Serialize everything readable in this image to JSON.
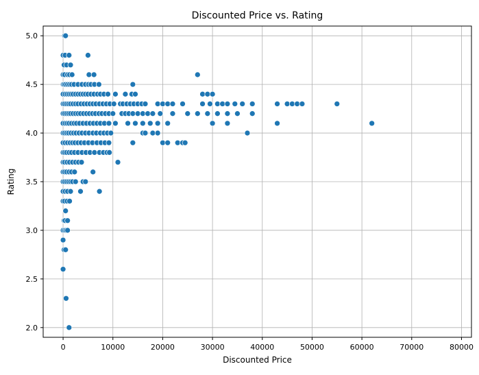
{
  "chart_data": {
    "type": "scatter",
    "title": "Discounted Price vs. Rating",
    "xlabel": "Discounted Price",
    "ylabel": "Rating",
    "xlim": [
      -4000,
      82000
    ],
    "ylim": [
      1.9,
      5.1
    ],
    "xticks": [
      0,
      10000,
      20000,
      30000,
      40000,
      50000,
      60000,
      70000,
      80000
    ],
    "yticks": [
      2.0,
      2.5,
      3.0,
      3.5,
      4.0,
      4.5,
      5.0
    ],
    "xtick_labels": [
      "0",
      "10000",
      "20000",
      "30000",
      "40000",
      "50000",
      "60000",
      "70000",
      "80000"
    ],
    "ytick_labels": [
      "2.0",
      "2.5",
      "3.0",
      "3.5",
      "4.0",
      "4.5",
      "5.0"
    ],
    "grid": true,
    "marker_color": "#1f77b4",
    "points": [
      [
        300,
        5.0
      ],
      [
        500,
        5.0
      ],
      [
        0,
        4.8
      ],
      [
        400,
        4.8
      ],
      [
        1200,
        4.8
      ],
      [
        5000,
        4.8
      ],
      [
        200,
        4.7
      ],
      [
        700,
        4.7
      ],
      [
        1500,
        4.7
      ],
      [
        0,
        4.6
      ],
      [
        300,
        4.6
      ],
      [
        900,
        4.6
      ],
      [
        1300,
        4.6
      ],
      [
        1800,
        4.6
      ],
      [
        5200,
        4.6
      ],
      [
        6200,
        4.6
      ],
      [
        27000,
        4.6
      ],
      [
        0,
        4.5
      ],
      [
        200,
        4.5
      ],
      [
        500,
        4.5
      ],
      [
        900,
        4.5
      ],
      [
        1300,
        4.5
      ],
      [
        1700,
        4.5
      ],
      [
        2200,
        4.5
      ],
      [
        3000,
        4.5
      ],
      [
        3800,
        4.5
      ],
      [
        4500,
        4.5
      ],
      [
        5100,
        4.5
      ],
      [
        5600,
        4.5
      ],
      [
        6300,
        4.5
      ],
      [
        7200,
        4.5
      ],
      [
        14000,
        4.5
      ],
      [
        0,
        4.4
      ],
      [
        400,
        4.4
      ],
      [
        800,
        4.4
      ],
      [
        1200,
        4.4
      ],
      [
        1600,
        4.4
      ],
      [
        2000,
        4.4
      ],
      [
        2500,
        4.4
      ],
      [
        3000,
        4.4
      ],
      [
        3500,
        4.4
      ],
      [
        4000,
        4.4
      ],
      [
        4500,
        4.4
      ],
      [
        5000,
        4.4
      ],
      [
        5600,
        4.4
      ],
      [
        6200,
        4.4
      ],
      [
        6900,
        4.4
      ],
      [
        7500,
        4.4
      ],
      [
        8200,
        4.4
      ],
      [
        9000,
        4.4
      ],
      [
        10500,
        4.4
      ],
      [
        12500,
        4.4
      ],
      [
        13800,
        4.4
      ],
      [
        14500,
        4.4
      ],
      [
        28000,
        4.4
      ],
      [
        29000,
        4.4
      ],
      [
        30000,
        4.4
      ],
      [
        0,
        4.3
      ],
      [
        300,
        4.3
      ],
      [
        700,
        4.3
      ],
      [
        1100,
        4.3
      ],
      [
        1500,
        4.3
      ],
      [
        2000,
        4.3
      ],
      [
        2500,
        4.3
      ],
      [
        3000,
        4.3
      ],
      [
        3600,
        4.3
      ],
      [
        4200,
        4.3
      ],
      [
        4800,
        4.3
      ],
      [
        5400,
        4.3
      ],
      [
        6000,
        4.3
      ],
      [
        6600,
        4.3
      ],
      [
        7300,
        4.3
      ],
      [
        8000,
        4.3
      ],
      [
        8700,
        4.3
      ],
      [
        9400,
        4.3
      ],
      [
        10200,
        4.3
      ],
      [
        11500,
        4.3
      ],
      [
        12000,
        4.3
      ],
      [
        12800,
        4.3
      ],
      [
        13500,
        4.3
      ],
      [
        14200,
        4.3
      ],
      [
        15000,
        4.3
      ],
      [
        15800,
        4.3
      ],
      [
        16500,
        4.3
      ],
      [
        19000,
        4.3
      ],
      [
        20000,
        4.3
      ],
      [
        21000,
        4.3
      ],
      [
        22000,
        4.3
      ],
      [
        24000,
        4.3
      ],
      [
        28000,
        4.3
      ],
      [
        29500,
        4.3
      ],
      [
        31000,
        4.3
      ],
      [
        32000,
        4.3
      ],
      [
        33000,
        4.3
      ],
      [
        34500,
        4.3
      ],
      [
        36000,
        4.3
      ],
      [
        38000,
        4.3
      ],
      [
        43000,
        4.3
      ],
      [
        45000,
        4.3
      ],
      [
        46000,
        4.3
      ],
      [
        47000,
        4.3
      ],
      [
        48000,
        4.3
      ],
      [
        55000,
        4.3
      ],
      [
        0,
        4.2
      ],
      [
        300,
        4.2
      ],
      [
        700,
        4.2
      ],
      [
        1100,
        4.2
      ],
      [
        1500,
        4.2
      ],
      [
        2000,
        4.2
      ],
      [
        2500,
        4.2
      ],
      [
        3000,
        4.2
      ],
      [
        3500,
        4.2
      ],
      [
        4100,
        4.2
      ],
      [
        4700,
        4.2
      ],
      [
        5300,
        4.2
      ],
      [
        5900,
        4.2
      ],
      [
        6500,
        4.2
      ],
      [
        7200,
        4.2
      ],
      [
        7800,
        4.2
      ],
      [
        8500,
        4.2
      ],
      [
        9200,
        4.2
      ],
      [
        10000,
        4.2
      ],
      [
        11800,
        4.2
      ],
      [
        12500,
        4.2
      ],
      [
        13200,
        4.2
      ],
      [
        14000,
        4.2
      ],
      [
        15000,
        4.2
      ],
      [
        16000,
        4.2
      ],
      [
        17000,
        4.2
      ],
      [
        18000,
        4.2
      ],
      [
        19500,
        4.2
      ],
      [
        22000,
        4.2
      ],
      [
        25000,
        4.2
      ],
      [
        27000,
        4.2
      ],
      [
        29000,
        4.2
      ],
      [
        31000,
        4.2
      ],
      [
        33000,
        4.2
      ],
      [
        35000,
        4.2
      ],
      [
        38000,
        4.2
      ],
      [
        0,
        4.1
      ],
      [
        400,
        4.1
      ],
      [
        800,
        4.1
      ],
      [
        1200,
        4.1
      ],
      [
        1700,
        4.1
      ],
      [
        2200,
        4.1
      ],
      [
        2700,
        4.1
      ],
      [
        3300,
        4.1
      ],
      [
        4000,
        4.1
      ],
      [
        4700,
        4.1
      ],
      [
        5400,
        4.1
      ],
      [
        6100,
        4.1
      ],
      [
        6800,
        4.1
      ],
      [
        7500,
        4.1
      ],
      [
        8300,
        4.1
      ],
      [
        9200,
        4.1
      ],
      [
        10500,
        4.1
      ],
      [
        13000,
        4.1
      ],
      [
        14500,
        4.1
      ],
      [
        16000,
        4.1
      ],
      [
        17500,
        4.1
      ],
      [
        19000,
        4.1
      ],
      [
        21000,
        4.1
      ],
      [
        30000,
        4.1
      ],
      [
        33000,
        4.1
      ],
      [
        43000,
        4.1
      ],
      [
        62000,
        4.1
      ],
      [
        0,
        4.0
      ],
      [
        300,
        4.0
      ],
      [
        700,
        4.0
      ],
      [
        1100,
        4.0
      ],
      [
        1600,
        4.0
      ],
      [
        2100,
        4.0
      ],
      [
        2600,
        4.0
      ],
      [
        3200,
        4.0
      ],
      [
        3800,
        4.0
      ],
      [
        4500,
        4.0
      ],
      [
        5200,
        4.0
      ],
      [
        6000,
        4.0
      ],
      [
        6700,
        4.0
      ],
      [
        7500,
        4.0
      ],
      [
        8200,
        4.0
      ],
      [
        8900,
        4.0
      ],
      [
        9600,
        4.0
      ],
      [
        16000,
        4.0
      ],
      [
        16500,
        4.0
      ],
      [
        18000,
        4.0
      ],
      [
        19000,
        4.0
      ],
      [
        37000,
        4.0
      ],
      [
        0,
        3.9
      ],
      [
        400,
        3.9
      ],
      [
        900,
        3.9
      ],
      [
        1400,
        3.9
      ],
      [
        1900,
        3.9
      ],
      [
        2400,
        3.9
      ],
      [
        3000,
        3.9
      ],
      [
        3600,
        3.9
      ],
      [
        4300,
        3.9
      ],
      [
        5100,
        3.9
      ],
      [
        5900,
        3.9
      ],
      [
        6800,
        3.9
      ],
      [
        7600,
        3.9
      ],
      [
        8400,
        3.9
      ],
      [
        9200,
        3.9
      ],
      [
        14000,
        3.9
      ],
      [
        20000,
        3.9
      ],
      [
        21000,
        3.9
      ],
      [
        23000,
        3.9
      ],
      [
        24000,
        3.9
      ],
      [
        24500,
        3.9
      ],
      [
        0,
        3.8
      ],
      [
        300,
        3.8
      ],
      [
        700,
        3.8
      ],
      [
        1200,
        3.8
      ],
      [
        1700,
        3.8
      ],
      [
        2300,
        3.8
      ],
      [
        3000,
        3.8
      ],
      [
        3800,
        3.8
      ],
      [
        4600,
        3.8
      ],
      [
        5400,
        3.8
      ],
      [
        6300,
        3.8
      ],
      [
        7300,
        3.8
      ],
      [
        8100,
        3.8
      ],
      [
        8800,
        3.8
      ],
      [
        9300,
        3.8
      ],
      [
        0,
        3.7
      ],
      [
        300,
        3.7
      ],
      [
        800,
        3.7
      ],
      [
        1300,
        3.7
      ],
      [
        1900,
        3.7
      ],
      [
        2500,
        3.7
      ],
      [
        3100,
        3.7
      ],
      [
        3700,
        3.7
      ],
      [
        11000,
        3.7
      ],
      [
        0,
        3.6
      ],
      [
        300,
        3.6
      ],
      [
        700,
        3.6
      ],
      [
        1200,
        3.6
      ],
      [
        1700,
        3.6
      ],
      [
        2300,
        3.6
      ],
      [
        6000,
        3.6
      ],
      [
        0,
        3.5
      ],
      [
        300,
        3.5
      ],
      [
        700,
        3.5
      ],
      [
        1100,
        3.5
      ],
      [
        1500,
        3.5
      ],
      [
        1900,
        3.5
      ],
      [
        2500,
        3.5
      ],
      [
        4000,
        3.5
      ],
      [
        4500,
        3.5
      ],
      [
        0,
        3.4
      ],
      [
        400,
        3.4
      ],
      [
        900,
        3.4
      ],
      [
        1500,
        3.4
      ],
      [
        3500,
        3.4
      ],
      [
        7300,
        3.4
      ],
      [
        0,
        3.3
      ],
      [
        300,
        3.3
      ],
      [
        800,
        3.3
      ],
      [
        1300,
        3.3
      ],
      [
        500,
        3.2
      ],
      [
        200,
        3.1
      ],
      [
        400,
        3.1
      ],
      [
        900,
        3.1
      ],
      [
        0,
        3.0
      ],
      [
        300,
        3.0
      ],
      [
        600,
        3.0
      ],
      [
        900,
        3.0
      ],
      [
        0,
        2.9
      ],
      [
        200,
        2.8
      ],
      [
        500,
        2.8
      ],
      [
        0,
        2.6
      ],
      [
        600,
        2.3
      ],
      [
        1200,
        2.0
      ]
    ]
  }
}
